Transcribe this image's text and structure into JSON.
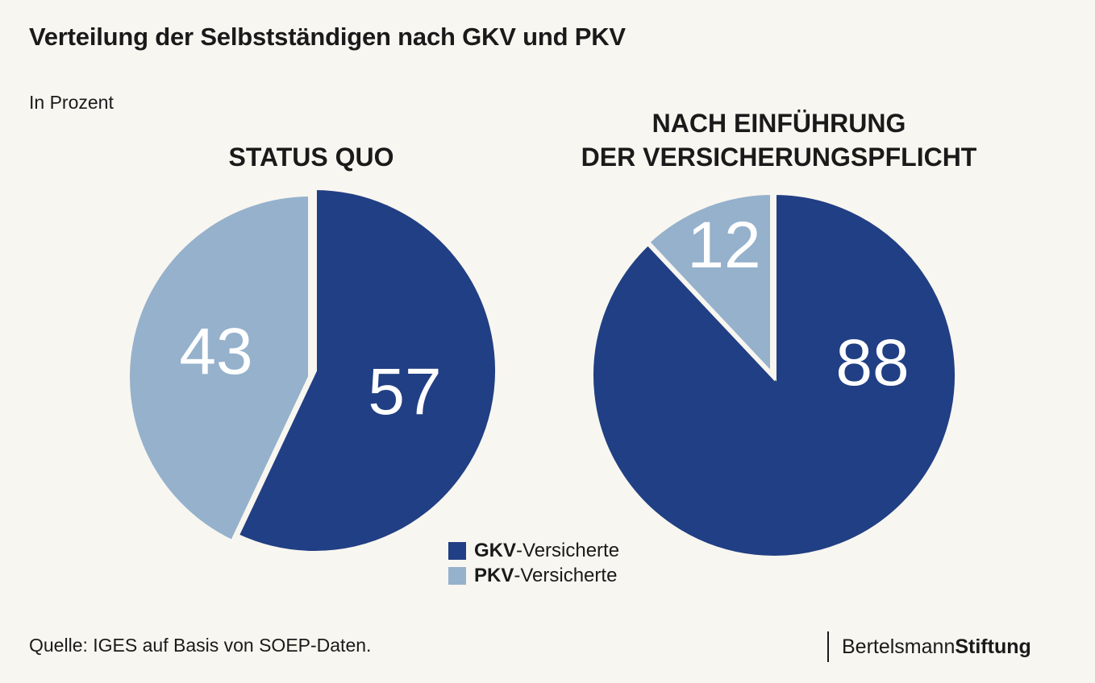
{
  "header": {
    "title": "Verteilung der Selbstständigen nach GKV und PKV",
    "subtitle": "In Prozent"
  },
  "colors": {
    "gkv": "#213f84",
    "pkv": "#95b1cc",
    "separator": "#f8f6f0",
    "label": "#ffffff"
  },
  "chart_data": [
    {
      "type": "pie",
      "title": "STATUS QUO",
      "slices": [
        {
          "name": "GKV-Versicherte",
          "value": 57
        },
        {
          "name": "PKV-Versicherte",
          "value": 43
        }
      ]
    },
    {
      "type": "pie",
      "title": "NACH EINFÜHRUNG DER VERSICHERUNGSPFLICHT",
      "title_lines": [
        "NACH EINFÜHRUNG",
        "DER VERSICHERUNGSPFLICHT"
      ],
      "slices": [
        {
          "name": "GKV-Versicherte",
          "value": 88
        },
        {
          "name": "PKV-Versicherte",
          "value": 12
        }
      ]
    }
  ],
  "legend": {
    "items": [
      {
        "code": "GKV",
        "suffix": "-Versicherte"
      },
      {
        "code": "PKV",
        "suffix": "-Versicherte"
      }
    ]
  },
  "footer": {
    "source": "Quelle: IGES auf Basis von SOEP-Daten.",
    "brand_regular": "Bertelsmann",
    "brand_bold": "Stiftung"
  }
}
